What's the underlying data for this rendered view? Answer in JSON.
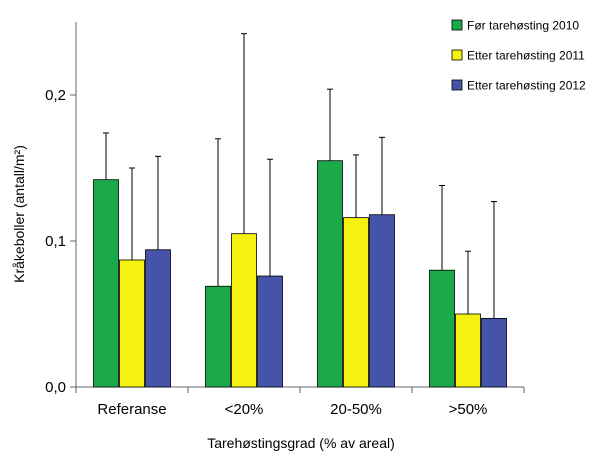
{
  "chart_data": {
    "type": "bar",
    "categories": [
      "Referanse",
      "<20%",
      "20-50%",
      ">50%"
    ],
    "series": [
      {
        "name": "Før tarehøsting 2010",
        "color": "#1aaa4a",
        "values": [
          0.142,
          0.069,
          0.155,
          0.08
        ],
        "error_upper": [
          0.174,
          0.17,
          0.204,
          0.138
        ]
      },
      {
        "name": "Etter tarehøsting 2011",
        "color": "#f6f20f",
        "values": [
          0.087,
          0.105,
          0.116,
          0.05
        ],
        "error_upper": [
          0.15,
          0.242,
          0.159,
          0.093
        ]
      },
      {
        "name": "Etter tarehøsting 2012",
        "color": "#4553a8",
        "values": [
          0.094,
          0.076,
          0.118,
          0.047
        ],
        "error_upper": [
          0.158,
          0.156,
          0.171,
          0.127
        ]
      }
    ],
    "xlabel": "Tarehøstingsgrad (% av areal)",
    "ylabel": "Kråkeboller (antall/m²)",
    "ylim": [
      0,
      0.25
    ],
    "yticks": [
      {
        "value": 0.0,
        "label": "0,0"
      },
      {
        "value": 0.1,
        "label": "0,1"
      },
      {
        "value": 0.2,
        "label": "0,2"
      }
    ],
    "grid": false,
    "legend_position": "top-right"
  }
}
